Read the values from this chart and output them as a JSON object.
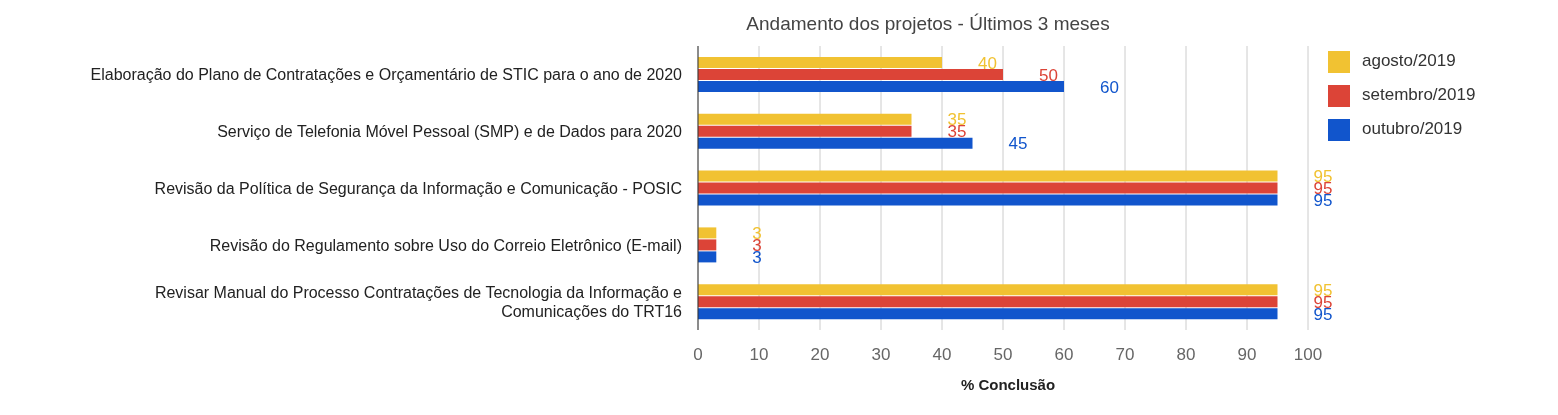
{
  "chart_data": {
    "type": "bar",
    "orientation": "horizontal",
    "title": "Andamento dos projetos - Últimos 3 meses",
    "xlabel": "% Conclusão",
    "categories": [
      "Elaboração do Plano de Contratações e Orçamentário de STIC para o ano de 2020",
      "Serviço de Telefonia Móvel Pessoal (SMP) e de Dados para 2020",
      "Revisão da Política de Segurança da Informação e Comunicação - POSIC",
      "Revisão do Regulamento sobre Uso do Correio Eletrônico (E-mail)",
      "Revisar Manual do Processo Contratações de Tecnologia da Informação e Comunicações do TRT16"
    ],
    "series": [
      {
        "name": "agosto/2019",
        "color": "#f1c232",
        "values": [
          40,
          35,
          95,
          3,
          95
        ]
      },
      {
        "name": "setembro/2019",
        "color": "#dc4437",
        "values": [
          50,
          35,
          95,
          3,
          95
        ]
      },
      {
        "name": "outubro/2019",
        "color": "#1155cc",
        "values": [
          60,
          45,
          95,
          3,
          95
        ]
      }
    ],
    "xlim": [
      0,
      100
    ],
    "xticks": [
      0,
      10,
      20,
      30,
      40,
      50,
      60,
      70,
      80,
      90,
      100
    ],
    "grid": "x",
    "legend": "top right",
    "data_labels": true
  }
}
